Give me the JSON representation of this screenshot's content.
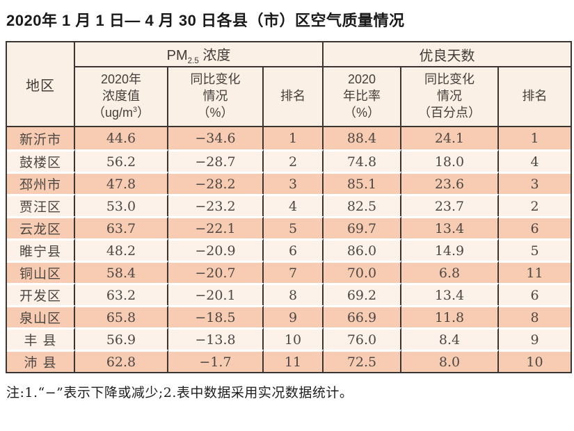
{
  "title": "2020年 1 月 1 日— 4 月 30 日各县（市）区空气质量情况",
  "table": {
    "header": {
      "region": "地区",
      "pm25_group": {
        "prefix": "PM",
        "sub": "2.5",
        "suffix": " 浓度"
      },
      "good_group": "优良天数",
      "pm25_value": {
        "line1": "2020年",
        "line2": "浓度值",
        "unit_prefix": "（ug/m",
        "unit_sup": "3",
        "unit_suffix": "）"
      },
      "pm25_change": {
        "line1": "同比变化",
        "line2": "情况",
        "line3": "（%）"
      },
      "pm25_rank": "排名",
      "good_ratio": {
        "line1": "2020",
        "line2": "年比率",
        "line3": "（%）"
      },
      "good_change": {
        "line1": "同比变化",
        "line2": "情况",
        "line3": "（百分点）"
      },
      "good_rank": "排名"
    },
    "rows": [
      {
        "region": "新沂市",
        "pm25": "44.6",
        "pm25_change": "−34.6",
        "pm25_rank": "1",
        "good_ratio": "88.4",
        "good_change": "24.1",
        "good_rank": "1"
      },
      {
        "region": "鼓楼区",
        "pm25": "56.2",
        "pm25_change": "−28.7",
        "pm25_rank": "2",
        "good_ratio": "74.8",
        "good_change": "18.0",
        "good_rank": "4"
      },
      {
        "region": "邳州市",
        "pm25": "47.8",
        "pm25_change": "−28.2",
        "pm25_rank": "3",
        "good_ratio": "85.1",
        "good_change": "23.6",
        "good_rank": "3"
      },
      {
        "region": "贾汪区",
        "pm25": "53.0",
        "pm25_change": "−23.2",
        "pm25_rank": "4",
        "good_ratio": "82.5",
        "good_change": "23.7",
        "good_rank": "2"
      },
      {
        "region": "云龙区",
        "pm25": "63.7",
        "pm25_change": "−22.1",
        "pm25_rank": "5",
        "good_ratio": "69.7",
        "good_change": "13.4",
        "good_rank": "6"
      },
      {
        "region": "睢宁县",
        "pm25": "48.2",
        "pm25_change": "−20.9",
        "pm25_rank": "6",
        "good_ratio": "86.0",
        "good_change": "14.9",
        "good_rank": "5"
      },
      {
        "region": "铜山区",
        "pm25": "58.4",
        "pm25_change": "−20.7",
        "pm25_rank": "7",
        "good_ratio": "70.0",
        "good_change": "6.8",
        "good_rank": "11"
      },
      {
        "region": "开发区",
        "pm25": "63.2",
        "pm25_change": "−20.1",
        "pm25_rank": "8",
        "good_ratio": "69.2",
        "good_change": "13.4",
        "good_rank": "6"
      },
      {
        "region": "泉山区",
        "pm25": "65.8",
        "pm25_change": "−18.5",
        "pm25_rank": "9",
        "good_ratio": "66.9",
        "good_change": "11.8",
        "good_rank": "8"
      },
      {
        "region": "丰 县",
        "pm25": "56.9",
        "pm25_change": "−13.8",
        "pm25_rank": "10",
        "good_ratio": "76.0",
        "good_change": "8.4",
        "good_rank": "9"
      },
      {
        "region": "沛 县",
        "pm25": "62.8",
        "pm25_change": "−1.7",
        "pm25_rank": "11",
        "good_ratio": "72.5",
        "good_change": "8.0",
        "good_rank": "10"
      }
    ]
  },
  "footnote": "注:1.“−”表示下降或减少;2.表中数据采用实况数据统计。",
  "colors": {
    "row_odd": "#f8ccb3",
    "row_even": "#fdf2ea",
    "header_bg": "#fbf0e5",
    "border": "#3a3531",
    "text": "#55504b"
  }
}
